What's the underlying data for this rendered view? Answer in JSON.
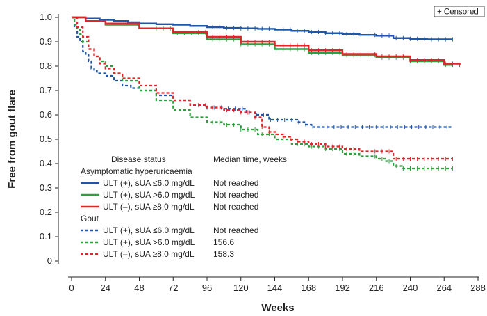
{
  "chart_data": {
    "type": "line",
    "subtype": "kaplan-meier",
    "title": "",
    "xlabel": "Weeks",
    "ylabel": "Free from gout flare",
    "xlim": [
      0,
      288
    ],
    "ylim": [
      0,
      1.0
    ],
    "x_ticks": [
      "0",
      "24",
      "48",
      "72",
      "96",
      "120",
      "144",
      "168",
      "192",
      "216",
      "240",
      "264",
      "288"
    ],
    "y_ticks": [
      "0",
      "0.1",
      "0.2",
      "0.3",
      "0.4",
      "0.5",
      "0.6",
      "0.7",
      "0.8",
      "0.9",
      "1.0"
    ],
    "censored_label": "+ Censored",
    "legend": {
      "header_status": "Disease status",
      "header_median": "Median time, weeks",
      "groups": [
        {
          "name": "Asymptomatic hyperuricaemia",
          "entries": [
            {
              "label": "ULT (+), sUA ≤6.0 mg/dL",
              "median": "Not reached",
              "color": "#1f56a8",
              "dash": "solid"
            },
            {
              "label": "ULT (+), sUA >6.0 mg/dL",
              "median": "Not reached",
              "color": "#2e9e3e",
              "dash": "solid"
            },
            {
              "label": "ULT (–), sUA ≥8.0 mg/dL",
              "median": "Not reached",
              "color": "#e0252a",
              "dash": "solid"
            }
          ]
        },
        {
          "name": "Gout",
          "entries": [
            {
              "label": "ULT (+), sUA ≤6.0 mg/dL",
              "median": "Not reached",
              "color": "#1f56a8",
              "dash": "dashed"
            },
            {
              "label": "ULT (+), sUA >6.0 mg/dL",
              "median": "156.6",
              "color": "#2e9e3e",
              "dash": "dashed"
            },
            {
              "label": "ULT (–), sUA ≥8.0 mg/dL",
              "median": "158.3",
              "color": "#e0252a",
              "dash": "dashed"
            }
          ]
        }
      ]
    },
    "series": [
      {
        "color": "#1f56a8",
        "dash": "solid",
        "x": [
          0,
          10,
          20,
          30,
          40,
          48,
          60,
          72,
          84,
          96,
          108,
          120,
          132,
          144,
          156,
          168,
          180,
          192,
          204,
          216,
          228,
          240,
          252,
          264,
          270
        ],
        "y": [
          1.0,
          0.995,
          0.99,
          0.985,
          0.98,
          0.975,
          0.972,
          0.97,
          0.965,
          0.96,
          0.957,
          0.955,
          0.953,
          0.95,
          0.945,
          0.94,
          0.935,
          0.932,
          0.928,
          0.925,
          0.915,
          0.912,
          0.91,
          0.91,
          0.91
        ],
        "censor_start": 100
      },
      {
        "color": "#2e9e3e",
        "dash": "solid",
        "x": [
          0,
          10,
          24,
          48,
          72,
          96,
          120,
          144,
          168,
          192,
          216,
          240,
          264,
          270
        ],
        "y": [
          1.0,
          0.985,
          0.97,
          0.955,
          0.935,
          0.91,
          0.89,
          0.87,
          0.855,
          0.845,
          0.835,
          0.82,
          0.805,
          0.805
        ],
        "censor_start": 60
      },
      {
        "color": "#e0252a",
        "dash": "solid",
        "x": [
          0,
          10,
          24,
          48,
          72,
          96,
          120,
          144,
          168,
          192,
          216,
          240,
          264,
          275
        ],
        "y": [
          1.0,
          0.985,
          0.975,
          0.955,
          0.94,
          0.92,
          0.9,
          0.885,
          0.865,
          0.85,
          0.84,
          0.825,
          0.81,
          0.805
        ],
        "censor_start": 90
      },
      {
        "color": "#1f56a8",
        "dash": "dashed",
        "x": [
          0,
          2,
          4,
          6,
          8,
          10,
          12,
          14,
          16,
          18,
          24,
          30,
          36,
          42,
          48,
          60,
          72,
          84,
          96,
          108,
          120,
          124,
          130,
          140,
          150,
          160,
          165,
          170,
          270
        ],
        "y": [
          1.0,
          0.96,
          0.92,
          0.9,
          0.86,
          0.85,
          0.82,
          0.79,
          0.78,
          0.77,
          0.76,
          0.74,
          0.72,
          0.71,
          0.7,
          0.68,
          0.66,
          0.64,
          0.63,
          0.625,
          0.625,
          0.61,
          0.6,
          0.58,
          0.58,
          0.57,
          0.56,
          0.55,
          0.55
        ],
        "censor_start": 96
      },
      {
        "color": "#2e9e3e",
        "dash": "dashed",
        "x": [
          0,
          2,
          4,
          6,
          8,
          12,
          16,
          20,
          24,
          30,
          36,
          48,
          60,
          72,
          84,
          96,
          108,
          120,
          132,
          144,
          156,
          168,
          180,
          192,
          204,
          216,
          222,
          228,
          235,
          270
        ],
        "y": [
          1.0,
          0.97,
          0.95,
          0.93,
          0.9,
          0.87,
          0.84,
          0.82,
          0.8,
          0.77,
          0.74,
          0.7,
          0.66,
          0.62,
          0.59,
          0.57,
          0.56,
          0.54,
          0.52,
          0.5,
          0.48,
          0.47,
          0.46,
          0.44,
          0.43,
          0.42,
          0.41,
          0.39,
          0.38,
          0.38
        ],
        "censor_start": 100
      },
      {
        "color": "#e0252a",
        "dash": "dashed",
        "x": [
          0,
          4,
          8,
          12,
          16,
          20,
          24,
          30,
          36,
          48,
          60,
          72,
          84,
          96,
          108,
          120,
          130,
          135,
          140,
          145,
          150,
          155,
          160,
          168,
          180,
          192,
          204,
          216,
          226,
          228,
          270
        ],
        "y": [
          1.0,
          0.96,
          0.92,
          0.87,
          0.84,
          0.81,
          0.79,
          0.77,
          0.75,
          0.72,
          0.69,
          0.66,
          0.64,
          0.63,
          0.62,
          0.61,
          0.59,
          0.55,
          0.53,
          0.52,
          0.51,
          0.5,
          0.49,
          0.48,
          0.47,
          0.46,
          0.45,
          0.45,
          0.45,
          0.42,
          0.42
        ],
        "censor_start": 90
      }
    ]
  }
}
